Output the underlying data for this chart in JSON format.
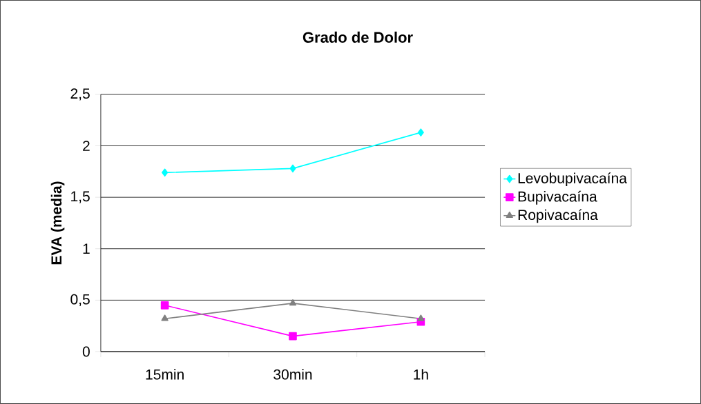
{
  "chart_data": {
    "type": "line",
    "title": "Grado de Dolor",
    "ylabel": "EVA (media)",
    "categories": [
      "15min",
      "30min",
      "1h"
    ],
    "series": [
      {
        "name": "Levobupivacaína",
        "color": "#00ffff",
        "marker": "diamond",
        "values": [
          1.74,
          1.78,
          2.13
        ]
      },
      {
        "name": "Bupivacaína",
        "color": "#ff00ff",
        "marker": "square",
        "values": [
          0.45,
          0.15,
          0.29
        ]
      },
      {
        "name": "Ropivacaína",
        "color": "#808080",
        "marker": "triangle",
        "values": [
          0.32,
          0.47,
          0.32
        ]
      }
    ],
    "ylim": [
      0,
      2.5
    ],
    "yticks": [
      {
        "value": 0,
        "label": "0"
      },
      {
        "value": 0.5,
        "label": "0,5"
      },
      {
        "value": 1,
        "label": "1"
      },
      {
        "value": 1.5,
        "label": "1,5"
      },
      {
        "value": 2,
        "label": "2"
      },
      {
        "value": 2.5,
        "label": "2,5"
      }
    ],
    "grid": "y",
    "legend": "right",
    "line_style": "solid"
  }
}
